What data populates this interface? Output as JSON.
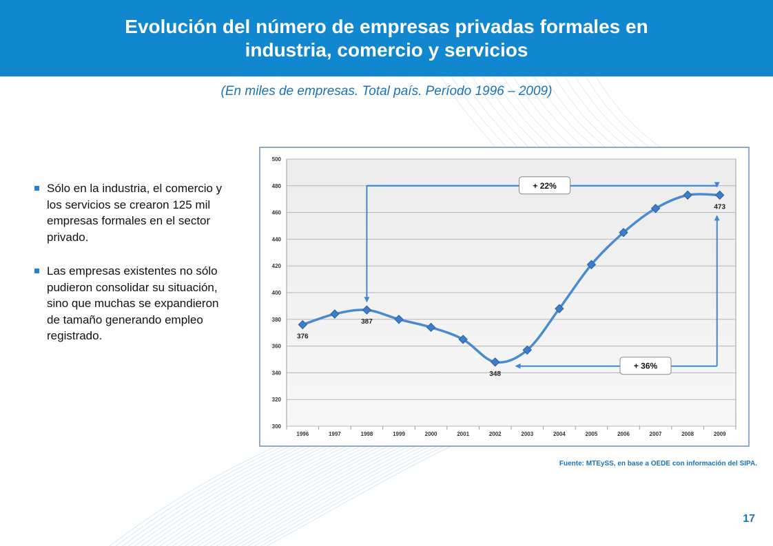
{
  "header": {
    "title_line1": "Evolución del número de empresas privadas formales en",
    "title_line2": "industria, comercio y servicios"
  },
  "subtitle": "(En miles de empresas. Total país. Período 1996 – 2009)",
  "bullets": [
    "Sólo en la industria, el comercio y los servicios se crearon 125 mil empresas formales en el sector privado.",
    "Las empresas existentes no sólo pudieron consolidar su situación, sino que muchas se expandieron de tamaño generando empleo registrado."
  ],
  "source": "Fuente: MTEySS, en base a OEDE con información del SIPA.",
  "page_number": "17",
  "colors": {
    "header_bg": "#1187cf",
    "accent": "#1a73b8",
    "line": "#4a8ad0",
    "marker": "#3d7ecb",
    "arrow": "#3f86d4"
  },
  "chart_data": {
    "type": "line",
    "x": [
      "1996",
      "1997",
      "1998",
      "1999",
      "2000",
      "2001",
      "2002",
      "2003",
      "2004",
      "2005",
      "2006",
      "2007",
      "2008",
      "2009"
    ],
    "values": [
      376,
      384,
      387,
      380,
      374,
      365,
      348,
      357,
      388,
      421,
      445,
      463,
      473,
      473
    ],
    "ylim": [
      300,
      500
    ],
    "yticks": [
      300,
      320,
      340,
      360,
      380,
      400,
      420,
      440,
      460,
      480,
      500
    ],
    "grid": true,
    "data_labels": [
      {
        "x": "1996",
        "text": "376"
      },
      {
        "x": "1998",
        "text": "387"
      },
      {
        "x": "2002",
        "text": "348"
      },
      {
        "x": "2009",
        "text": "473"
      }
    ],
    "annotations": [
      {
        "text": "+ 22%",
        "from": "1998",
        "to": "2009",
        "position": "above"
      },
      {
        "text": "+ 36%",
        "from": "2002",
        "to": "2009",
        "position": "below"
      }
    ]
  }
}
